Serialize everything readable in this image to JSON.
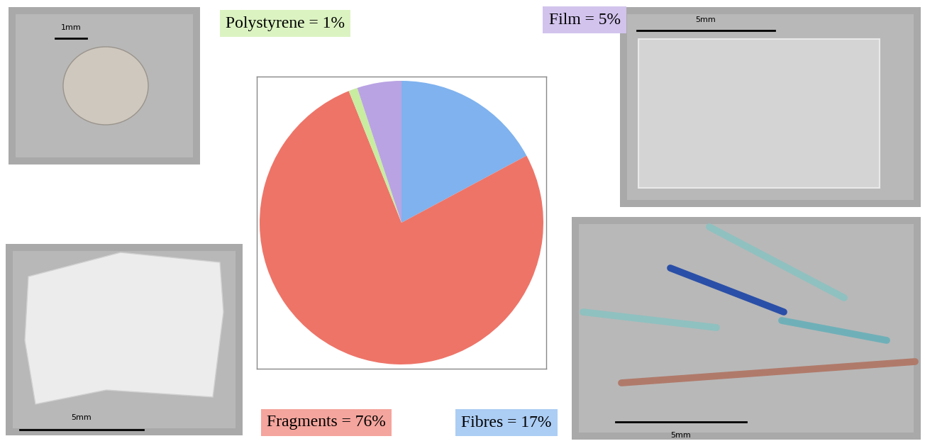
{
  "chart_data": {
    "type": "pie",
    "values": [
      17,
      76,
      1,
      5
    ],
    "value_labels": [
      "Fibres = 17%",
      "Fragments = 76%",
      "Polystyrene = 1%",
      "Film = 5%"
    ],
    "colors": [
      "#7fb2ee",
      "#ee7468",
      "#c8eca0",
      "#b9a3e3"
    ]
  },
  "photos": [
    {
      "scale_bar": "5mm"
    },
    {
      "scale_bar": "5mm"
    },
    {
      "scale_bar": "1mm"
    },
    {
      "scale_bar": "5mm"
    }
  ]
}
